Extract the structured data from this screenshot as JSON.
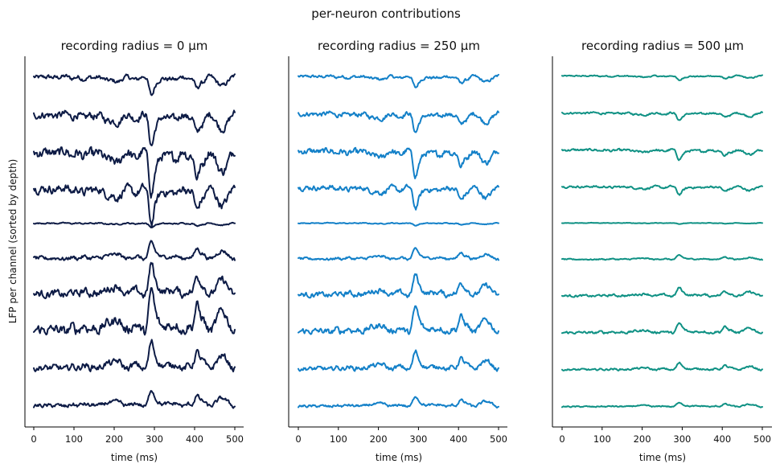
{
  "figure": {
    "suptitle": "per-neuron contributions",
    "ylabel": "LFP per channel (sorted by depth)"
  },
  "chart_data": [
    {
      "type": "line",
      "title": "recording radius = 0 µm",
      "xlabel": "time (ms)",
      "xlim": [
        0,
        500
      ],
      "xticks": [
        0,
        100,
        200,
        300,
        400,
        500
      ],
      "xtick_labels": [
        "0",
        "100",
        "200",
        "300",
        "400",
        "500"
      ],
      "channels": 10,
      "trace_amplitudes": [
        -0.9,
        -1.5,
        -2.0,
        -1.7,
        -0.2,
        0.8,
        1.5,
        2.0,
        1.3,
        0.8
      ],
      "color": "#0d1b45"
    },
    {
      "type": "line",
      "title": "recording radius = 250 µm",
      "xlabel": "time (ms)",
      "xlim": [
        0,
        500
      ],
      "xticks": [
        0,
        100,
        200,
        300,
        400,
        500
      ],
      "xtick_labels": [
        "0",
        "100",
        "200",
        "300",
        "400",
        "500"
      ],
      "channels": 10,
      "trace_amplitudes": [
        -0.55,
        -0.9,
        -1.2,
        -1.0,
        -0.12,
        0.5,
        1.0,
        1.2,
        0.85,
        0.5
      ],
      "color": "#1380c8"
    },
    {
      "type": "line",
      "title": "recording radius = 500 µm",
      "xlabel": "time (ms)",
      "xlim": [
        0,
        500
      ],
      "xticks": [
        0,
        100,
        200,
        300,
        400,
        500
      ],
      "xtick_labels": [
        "0",
        "100",
        "200",
        "300",
        "400",
        "500"
      ],
      "channels": 10,
      "trace_amplitudes": [
        -0.22,
        -0.35,
        -0.45,
        -0.38,
        -0.05,
        0.2,
        0.4,
        0.45,
        0.33,
        0.22
      ],
      "color": "#0f9184"
    }
  ]
}
